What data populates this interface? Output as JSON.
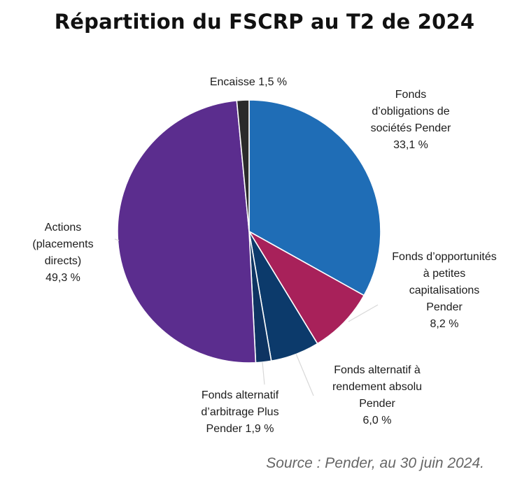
{
  "chart_data": {
    "type": "pie",
    "title": "Répartition du FSCRP au T2 de 2024",
    "slices": [
      {
        "label": "Fonds d’obligations de sociétés Pender",
        "value": 33.1,
        "value_label": "33,1 %",
        "color": "#1f6db6",
        "label_lines": [
          "Fonds",
          "d’obligations de",
          "sociétés Pender",
          "33,1 %"
        ]
      },
      {
        "label": "Fonds d’opportunités à petites capitalisations Pender",
        "value": 8.2,
        "value_label": "8,2 %",
        "color": "#a8215a",
        "label_lines": [
          "Fonds d’opportunités",
          "à petites",
          "capitalisations",
          "Pender",
          "8,2 %"
        ]
      },
      {
        "label": "Fonds alternatif à rendement absolu Pender",
        "value": 6.0,
        "value_label": "6,0 %",
        "color": "#0c3a6b",
        "label_lines": [
          "Fonds alternatif à",
          "rendement absolu",
          "Pender",
          "6,0 %"
        ]
      },
      {
        "label": "Fonds alternatif d’arbitrage Plus Pender",
        "value": 1.9,
        "value_label": "1,9 %",
        "color": "#0e3462",
        "label_lines": [
          "Fonds alternatif",
          "d’arbitrage Plus",
          "Pender 1,9 %"
        ]
      },
      {
        "label": "Actions (placements directs)",
        "value": 49.3,
        "value_label": "49,3 %",
        "color": "#5b2d8e",
        "label_lines": [
          "Actions",
          "(placements",
          "directs)",
          "49,3 %"
        ]
      },
      {
        "label": "Encaisse",
        "value": 1.5,
        "value_label": "1,5 %",
        "color": "#2a2a2a",
        "label_lines": [
          "Encaisse 1,5 %"
        ]
      }
    ],
    "start_angle": "12 o'clock",
    "direction": "clockwise",
    "source": "Source : Pender, au 30 juin 2024."
  }
}
